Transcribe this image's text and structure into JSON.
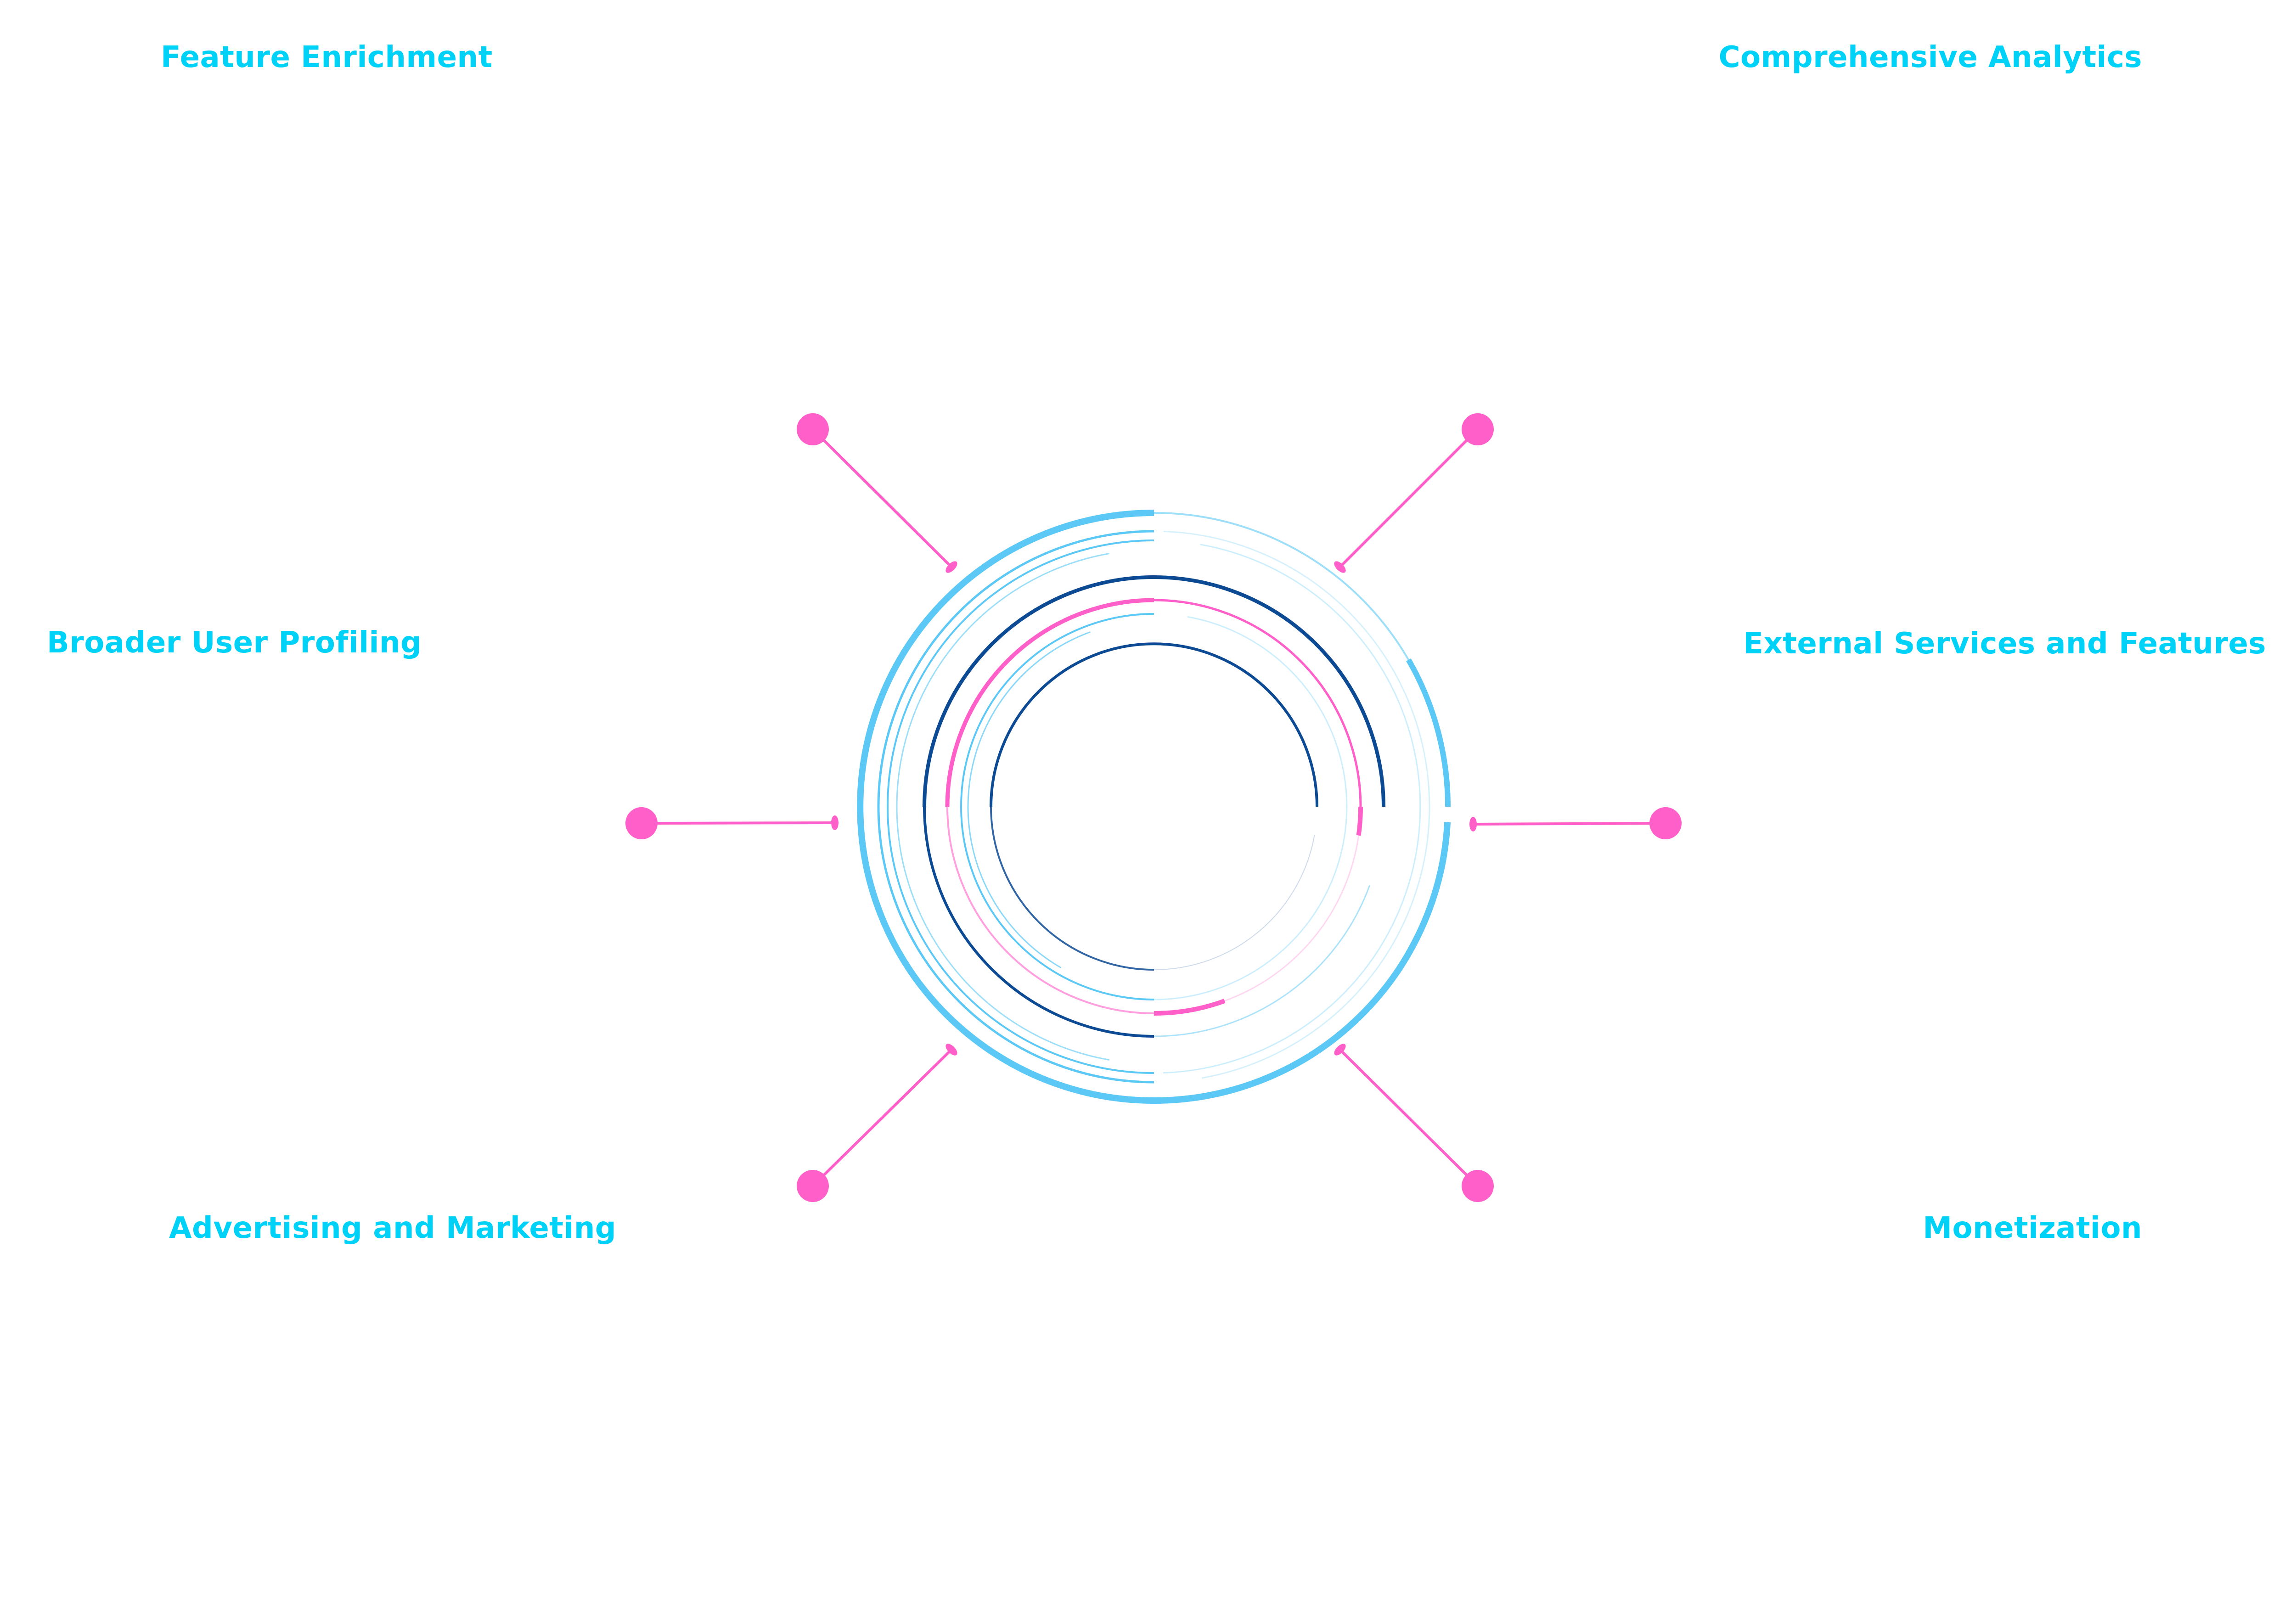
{
  "colors": {
    "label": "#00d2f7",
    "accent_pink": "#ff5fc8",
    "ring_light_blue": "#5bc8f5",
    "ring_dark_blue": "#0d4a94",
    "background": "#ffffff"
  },
  "labels": {
    "top_left": "Feature Enrichment",
    "top_right": "Comprehensive Analytics",
    "mid_left": "Broader User Profiling",
    "mid_right": "External Services and Features",
    "bottom_left": "Advertising and Marketing",
    "bottom_right": "Monetization"
  }
}
